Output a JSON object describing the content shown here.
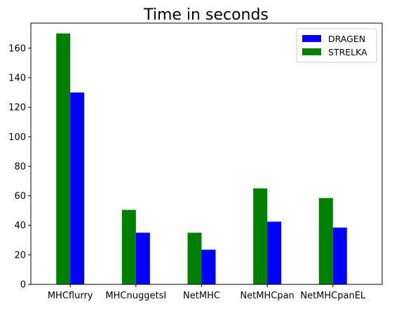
{
  "chart_data": {
    "type": "bar",
    "title": "Time in seconds",
    "xlabel": "",
    "ylabel": "",
    "categories": [
      "MHCflurry",
      "MHCnuggetsI",
      "NetMHC",
      "NetMHCpan",
      "NetMHCpanEL"
    ],
    "series": [
      {
        "name": "DRAGEN",
        "color": "#0000ff",
        "values": [
          130,
          35,
          23.5,
          42.5,
          38.5
        ]
      },
      {
        "name": "STRELKA",
        "color": "#008000",
        "values": [
          170,
          50.5,
          35,
          65,
          58.5
        ]
      }
    ],
    "ylim": [
      0,
      177
    ],
    "yticks": [
      0,
      20,
      40,
      60,
      80,
      100,
      120,
      140,
      160
    ],
    "legend_position": "top-right",
    "grid": false
  }
}
